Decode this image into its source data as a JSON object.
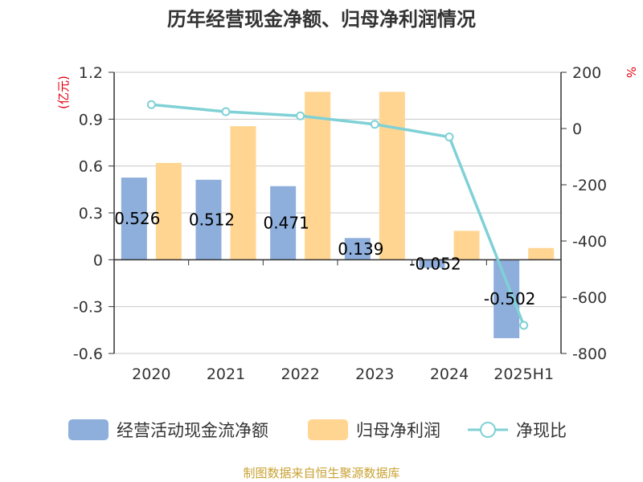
{
  "chart_data": {
    "type": "bar",
    "title": "历年经营现金净额、归母净利润情况",
    "source": "制图数据来自恒生聚源数据库",
    "categories": [
      "2020",
      "2021",
      "2022",
      "2023",
      "2024",
      "2025H1"
    ],
    "left_axis": {
      "unit": "(亿元)",
      "ylim": [
        -0.6,
        1.2
      ],
      "ticks": [
        "1.2",
        "0.9",
        "0.6",
        "0.3",
        "0",
        "-0.3",
        "-0.6"
      ]
    },
    "right_axis": {
      "unit": "%",
      "ylim": [
        -800,
        200
      ],
      "ticks": [
        "200",
        "0",
        "-200",
        "-400",
        "-600",
        "-800"
      ]
    },
    "grid": true,
    "legend_position": "bottom",
    "series": [
      {
        "name": "经营活动现金流净额",
        "type": "bar",
        "axis": "left",
        "color": "#8eaedb",
        "values": [
          0.526,
          0.512,
          0.471,
          0.139,
          -0.052,
          -0.502
        ],
        "labels": [
          "0.526",
          "0.512",
          "0.471",
          "0.139",
          "-0.052",
          "-0.502"
        ]
      },
      {
        "name": "归母净利润",
        "type": "bar",
        "axis": "left",
        "color": "#ffd591",
        "values": [
          0.62,
          0.855,
          1.075,
          1.075,
          0.185,
          0.075
        ]
      },
      {
        "name": "净现比",
        "type": "line",
        "axis": "right",
        "color": "#7fd1d6",
        "values": [
          85,
          60,
          45,
          15,
          -30,
          -700
        ]
      }
    ]
  }
}
